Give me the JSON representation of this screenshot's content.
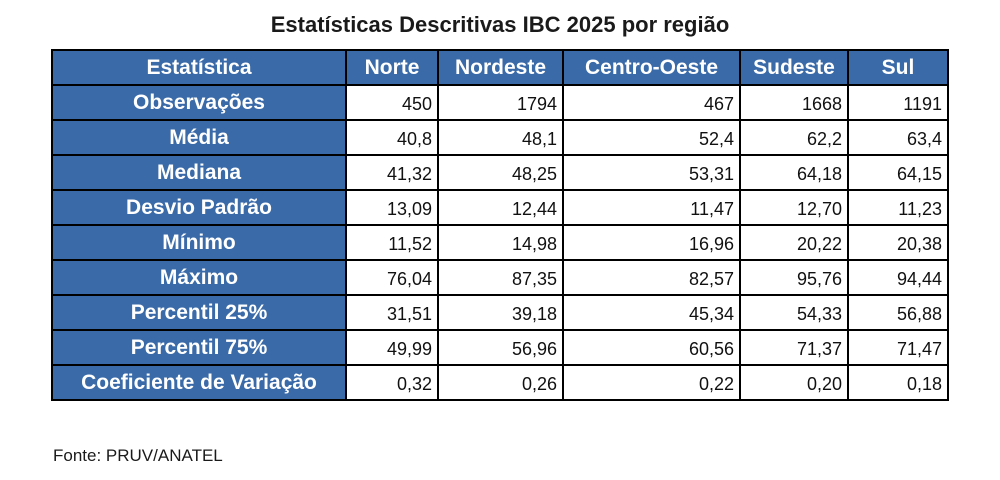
{
  "title": "Estatísticas Descritivas IBC 2025 por região",
  "header": [
    "Estatística",
    "Norte",
    "Nordeste",
    "Centro-Oeste",
    "Sudeste",
    "Sul"
  ],
  "rows": [
    {
      "label": "Observações",
      "values": [
        "450",
        "1794",
        "467",
        "1668",
        "1191"
      ]
    },
    {
      "label": "Média",
      "values": [
        "40,8",
        "48,1",
        "52,4",
        "62,2",
        "63,4"
      ]
    },
    {
      "label": "Mediana",
      "values": [
        "41,32",
        "48,25",
        "53,31",
        "64,18",
        "64,15"
      ]
    },
    {
      "label": "Desvio Padrão",
      "values": [
        "13,09",
        "12,44",
        "11,47",
        "12,70",
        "11,23"
      ]
    },
    {
      "label": "Mínimo",
      "values": [
        "11,52",
        "14,98",
        "16,96",
        "20,22",
        "20,38"
      ]
    },
    {
      "label": "Máximo",
      "values": [
        "76,04",
        "87,35",
        "82,57",
        "95,76",
        "94,44"
      ]
    },
    {
      "label": "Percentil 25%",
      "values": [
        "31,51",
        "39,18",
        "45,34",
        "54,33",
        "56,88"
      ]
    },
    {
      "label": "Percentil 75%",
      "values": [
        "49,99",
        "56,96",
        "60,56",
        "71,37",
        "71,47"
      ]
    },
    {
      "label": "Coeficiente de Variação",
      "values": [
        "0,32",
        "0,26",
        "0,22",
        "0,20",
        "0,18"
      ]
    }
  ],
  "source": "Fonte: PRUV/ANATEL",
  "colors": {
    "header_bg": "#3a6aa8",
    "header_text": "#ffffff",
    "border": "#000000"
  }
}
